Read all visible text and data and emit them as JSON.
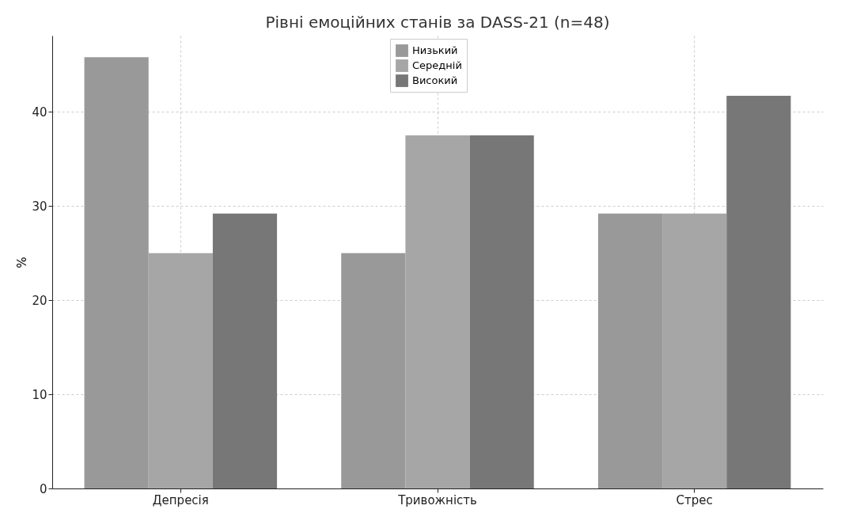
{
  "chart_data": {
    "type": "bar",
    "title": "Рівні емоційних станів за DASS-21 (n=48)",
    "ylabel": "%",
    "categories": [
      "Депресія",
      "Тривожність",
      "Стрес"
    ],
    "series": [
      {
        "name": "Низький",
        "color": "#999999",
        "values": [
          45.8,
          25,
          29.2
        ]
      },
      {
        "name": "Середній",
        "color": "#a6a6a6",
        "values": [
          25,
          37.5,
          29.2
        ]
      },
      {
        "name": "Високий",
        "color": "#777777",
        "values": [
          29.2,
          37.5,
          41.7
        ]
      }
    ],
    "ylim": [
      0,
      48.1
    ],
    "yticks": [
      0,
      10,
      20,
      30,
      40
    ],
    "grid": true,
    "legend": "top"
  }
}
